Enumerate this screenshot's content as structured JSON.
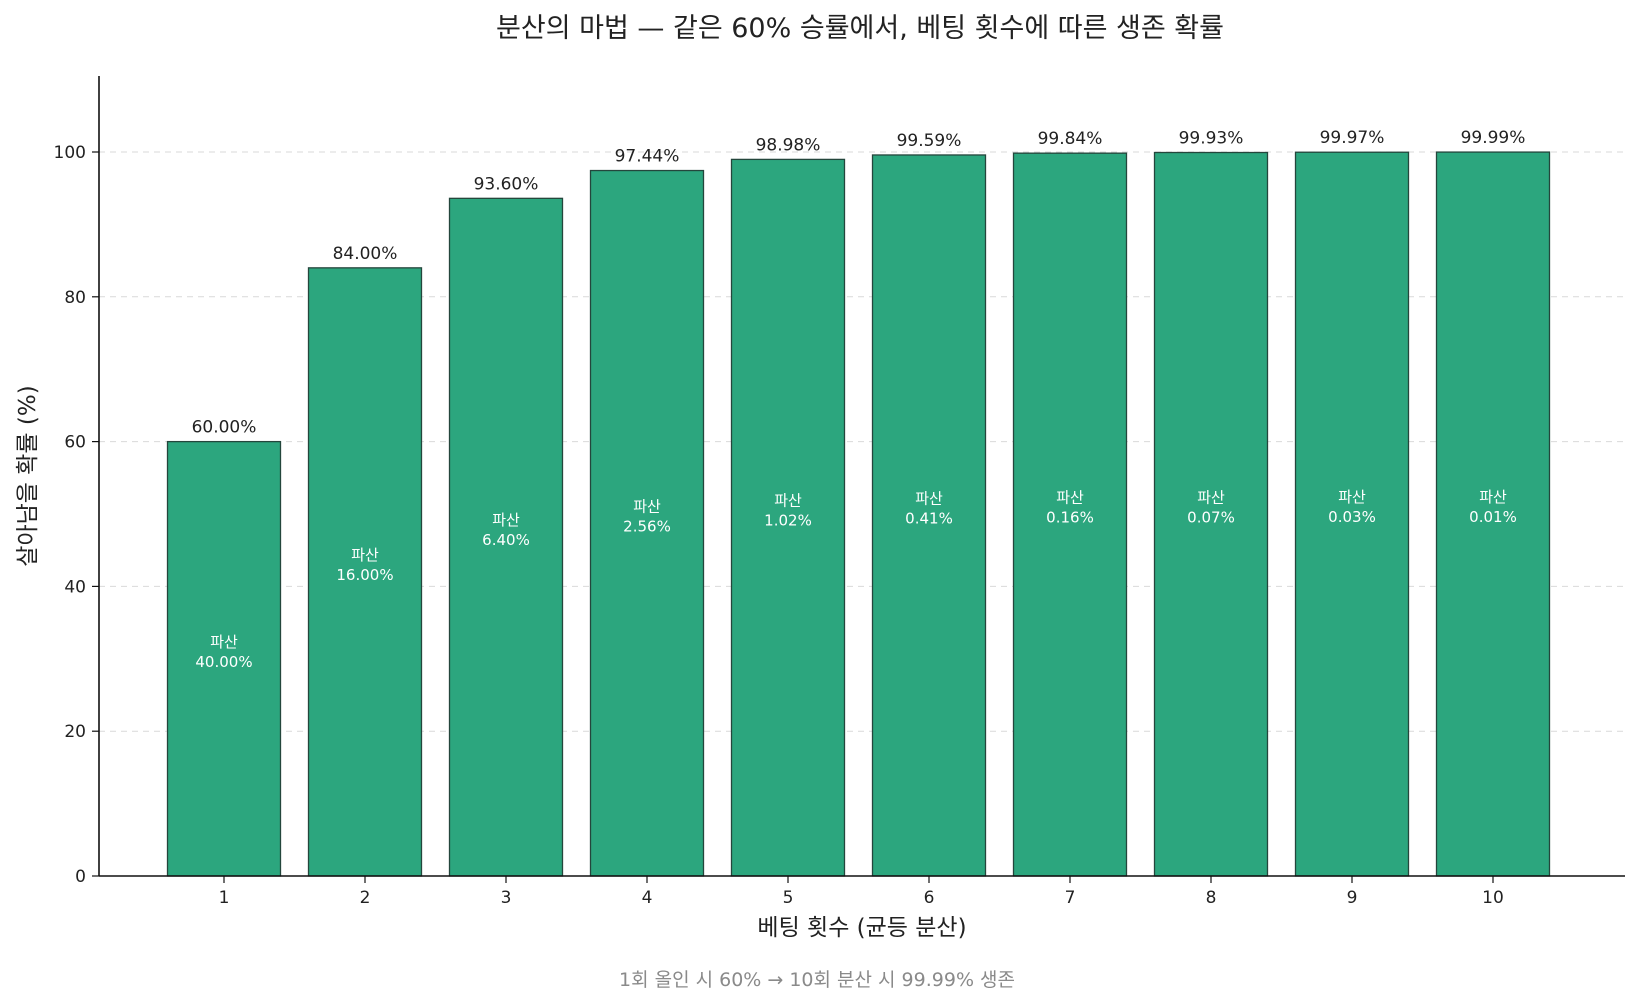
{
  "chart_data": {
    "type": "bar",
    "title": "분산의 마법 — 같은 60% 승률에서, 베팅 횟수에 따른 생존 확률",
    "xlabel": "베팅 횟수 (균등 분산)",
    "ylabel": "살아남을 확률 (%)",
    "ylim": [
      0,
      110
    ],
    "yticks": [
      "0",
      "20",
      "40",
      "60",
      "80",
      "100"
    ],
    "grid": "y-dashed",
    "categories": [
      "1",
      "2",
      "3",
      "4",
      "5",
      "6",
      "7",
      "8",
      "9",
      "10"
    ],
    "values": [
      60.0,
      84.0,
      93.6,
      97.44,
      98.98,
      99.59,
      99.84,
      99.93,
      99.97,
      99.99
    ],
    "value_labels": [
      "60.00%",
      "84.00%",
      "93.60%",
      "97.44%",
      "98.98%",
      "99.59%",
      "99.84%",
      "99.93%",
      "99.97%",
      "99.99%"
    ],
    "inner_label_prefix": "파산",
    "ruin_labels": [
      "40.00%",
      "16.00%",
      "6.40%",
      "2.56%",
      "1.02%",
      "0.41%",
      "0.16%",
      "0.07%",
      "0.03%",
      "0.01%"
    ],
    "colors": {
      "bar": "#2ca67e",
      "edge": "#24463c"
    },
    "footnote": "1회 올인 시 60% → 10회 분산 시 99.99% 생존"
  }
}
